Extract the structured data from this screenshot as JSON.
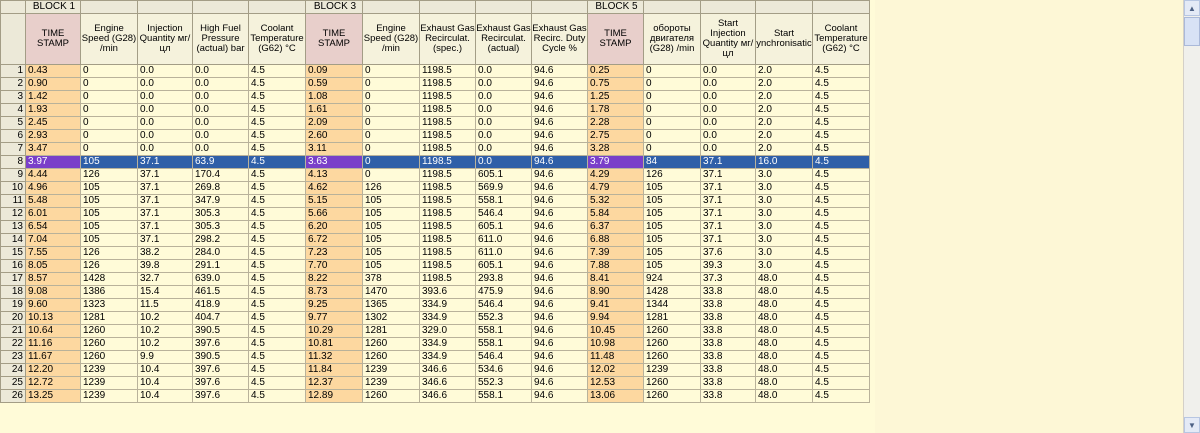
{
  "blocks": {
    "b1": "BLOCK 1",
    "b3": "BLOCK 3",
    "b5": "BLOCK 5"
  },
  "headers": [
    "TIME STAMP",
    "Engine Speed (G28) /min",
    "Injection Quantity мг/цл",
    "High Fuel Pressure (actual) bar",
    "Coolant Temperature (G62) °C",
    "TIME STAMP",
    "Engine Speed (G28) /min",
    "Exhaust Gas Recirculat. (spec.)",
    "Exhaust Gas Recirculat. (actual)",
    "Exhaust Gas Recirc. Duty Cycle %",
    "TIME STAMP",
    "обороты двигателя (G28) /min",
    "Start Injection Quantity мг/цл",
    "Start ynchronisatic",
    "Coolant Temperature (G62) °C"
  ],
  "rows": [
    [
      "1",
      "0.43",
      "0",
      "0.0",
      "0.0",
      "4.5",
      "0.09",
      "0",
      "1198.5",
      "0.0",
      "94.6",
      "0.25",
      "0",
      "0.0",
      "2.0",
      "4.5"
    ],
    [
      "2",
      "0.90",
      "0",
      "0.0",
      "0.0",
      "4.5",
      "0.59",
      "0",
      "1198.5",
      "0.0",
      "94.6",
      "0.75",
      "0",
      "0.0",
      "2.0",
      "4.5"
    ],
    [
      "3",
      "1.42",
      "0",
      "0.0",
      "0.0",
      "4.5",
      "1.08",
      "0",
      "1198.5",
      "0.0",
      "94.6",
      "1.25",
      "0",
      "0.0",
      "2.0",
      "4.5"
    ],
    [
      "4",
      "1.93",
      "0",
      "0.0",
      "0.0",
      "4.5",
      "1.61",
      "0",
      "1198.5",
      "0.0",
      "94.6",
      "1.78",
      "0",
      "0.0",
      "2.0",
      "4.5"
    ],
    [
      "5",
      "2.45",
      "0",
      "0.0",
      "0.0",
      "4.5",
      "2.09",
      "0",
      "1198.5",
      "0.0",
      "94.6",
      "2.28",
      "0",
      "0.0",
      "2.0",
      "4.5"
    ],
    [
      "6",
      "2.93",
      "0",
      "0.0",
      "0.0",
      "4.5",
      "2.60",
      "0",
      "1198.5",
      "0.0",
      "94.6",
      "2.75",
      "0",
      "0.0",
      "2.0",
      "4.5"
    ],
    [
      "7",
      "3.47",
      "0",
      "0.0",
      "0.0",
      "4.5",
      "3.11",
      "0",
      "1198.5",
      "0.0",
      "94.6",
      "3.28",
      "0",
      "0.0",
      "2.0",
      "4.5"
    ],
    [
      "8",
      "3.97",
      "105",
      "37.1",
      "63.9",
      "4.5",
      "3.63",
      "0",
      "1198.5",
      "0.0",
      "94.6",
      "3.79",
      "84",
      "37.1",
      "16.0",
      "4.5"
    ],
    [
      "9",
      "4.44",
      "126",
      "37.1",
      "170.4",
      "4.5",
      "4.13",
      "0",
      "1198.5",
      "605.1",
      "94.6",
      "4.29",
      "126",
      "37.1",
      "3.0",
      "4.5"
    ],
    [
      "10",
      "4.96",
      "105",
      "37.1",
      "269.8",
      "4.5",
      "4.62",
      "126",
      "1198.5",
      "569.9",
      "94.6",
      "4.79",
      "105",
      "37.1",
      "3.0",
      "4.5"
    ],
    [
      "11",
      "5.48",
      "105",
      "37.1",
      "347.9",
      "4.5",
      "5.15",
      "105",
      "1198.5",
      "558.1",
      "94.6",
      "5.32",
      "105",
      "37.1",
      "3.0",
      "4.5"
    ],
    [
      "12",
      "6.01",
      "105",
      "37.1",
      "305.3",
      "4.5",
      "5.66",
      "105",
      "1198.5",
      "546.4",
      "94.6",
      "5.84",
      "105",
      "37.1",
      "3.0",
      "4.5"
    ],
    [
      "13",
      "6.54",
      "105",
      "37.1",
      "305.3",
      "4.5",
      "6.20",
      "105",
      "1198.5",
      "605.1",
      "94.6",
      "6.37",
      "105",
      "37.1",
      "3.0",
      "4.5"
    ],
    [
      "14",
      "7.04",
      "105",
      "37.1",
      "298.2",
      "4.5",
      "6.72",
      "105",
      "1198.5",
      "611.0",
      "94.6",
      "6.88",
      "105",
      "37.1",
      "3.0",
      "4.5"
    ],
    [
      "15",
      "7.55",
      "126",
      "38.2",
      "284.0",
      "4.5",
      "7.23",
      "105",
      "1198.5",
      "611.0",
      "94.6",
      "7.39",
      "105",
      "37.6",
      "3.0",
      "4.5"
    ],
    [
      "16",
      "8.05",
      "126",
      "39.8",
      "291.1",
      "4.5",
      "7.70",
      "105",
      "1198.5",
      "605.1",
      "94.6",
      "7.88",
      "105",
      "39.3",
      "3.0",
      "4.5"
    ],
    [
      "17",
      "8.57",
      "1428",
      "32.7",
      "639.0",
      "4.5",
      "8.22",
      "378",
      "1198.5",
      "293.8",
      "94.6",
      "8.41",
      "924",
      "37.3",
      "48.0",
      "4.5"
    ],
    [
      "18",
      "9.08",
      "1386",
      "15.4",
      "461.5",
      "4.5",
      "8.73",
      "1470",
      "393.6",
      "475.9",
      "94.6",
      "8.90",
      "1428",
      "33.8",
      "48.0",
      "4.5"
    ],
    [
      "19",
      "9.60",
      "1323",
      "11.5",
      "418.9",
      "4.5",
      "9.25",
      "1365",
      "334.9",
      "546.4",
      "94.6",
      "9.41",
      "1344",
      "33.8",
      "48.0",
      "4.5"
    ],
    [
      "20",
      "10.13",
      "1281",
      "10.2",
      "404.7",
      "4.5",
      "9.77",
      "1302",
      "334.9",
      "552.3",
      "94.6",
      "9.94",
      "1281",
      "33.8",
      "48.0",
      "4.5"
    ],
    [
      "21",
      "10.64",
      "1260",
      "10.2",
      "390.5",
      "4.5",
      "10.29",
      "1281",
      "329.0",
      "558.1",
      "94.6",
      "10.45",
      "1260",
      "33.8",
      "48.0",
      "4.5"
    ],
    [
      "22",
      "11.16",
      "1260",
      "10.2",
      "397.6",
      "4.5",
      "10.81",
      "1260",
      "334.9",
      "558.1",
      "94.6",
      "10.98",
      "1260",
      "33.8",
      "48.0",
      "4.5"
    ],
    [
      "23",
      "11.67",
      "1260",
      "9.9",
      "390.5",
      "4.5",
      "11.32",
      "1260",
      "334.9",
      "546.4",
      "94.6",
      "11.48",
      "1260",
      "33.8",
      "48.0",
      "4.5"
    ],
    [
      "24",
      "12.20",
      "1239",
      "10.4",
      "397.6",
      "4.5",
      "11.84",
      "1239",
      "346.6",
      "534.6",
      "94.6",
      "12.02",
      "1239",
      "33.8",
      "48.0",
      "4.5"
    ],
    [
      "25",
      "12.72",
      "1239",
      "10.4",
      "397.6",
      "4.5",
      "12.37",
      "1239",
      "346.6",
      "552.3",
      "94.6",
      "12.53",
      "1260",
      "33.8",
      "48.0",
      "4.5"
    ],
    [
      "26",
      "13.25",
      "1239",
      "10.4",
      "397.6",
      "4.5",
      "12.89",
      "1260",
      "346.6",
      "558.1",
      "94.6",
      "13.06",
      "1260",
      "33.8",
      "48.0",
      "4.5"
    ]
  ],
  "selected_row": "8",
  "icons": {
    "up": "scroll-up-arrow-icon",
    "down": "scroll-down-arrow-icon"
  }
}
